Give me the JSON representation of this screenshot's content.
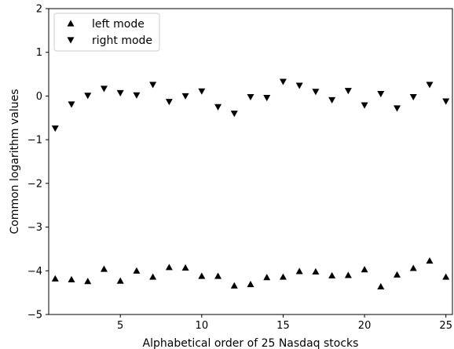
{
  "chart_data": {
    "type": "scatter",
    "xlabel": "Alphabetical order of 25 Nasdaq stocks",
    "ylabel": "Common logarithm values",
    "xlim": [
      0.6,
      25.4
    ],
    "ylim": [
      -5,
      2
    ],
    "xticks": [
      5,
      10,
      15,
      20,
      25
    ],
    "yticks": [
      -5,
      -4,
      -3,
      -2,
      -1,
      0,
      1,
      2
    ],
    "grid": false,
    "legend_position": "top-left",
    "x": [
      1,
      2,
      3,
      4,
      5,
      6,
      7,
      8,
      9,
      10,
      11,
      12,
      13,
      14,
      15,
      16,
      17,
      18,
      19,
      20,
      21,
      22,
      23,
      24,
      25
    ],
    "series": [
      {
        "name": "left mode",
        "marker": "triangle-up",
        "color": "#000000",
        "values": [
          -4.18,
          -4.2,
          -4.24,
          -3.96,
          -4.23,
          -4.0,
          -4.14,
          -3.92,
          -3.93,
          -4.12,
          -4.12,
          -4.34,
          -4.31,
          -4.15,
          -4.14,
          -4.01,
          -4.02,
          -4.11,
          -4.1,
          -3.97,
          -4.36,
          -4.09,
          -3.94,
          -3.77,
          -4.14
        ]
      },
      {
        "name": "right mode",
        "marker": "triangle-down",
        "color": "#000000",
        "values": [
          -0.74,
          -0.19,
          0.01,
          0.17,
          0.07,
          0.02,
          0.26,
          -0.13,
          0.0,
          0.11,
          -0.25,
          -0.4,
          -0.02,
          -0.04,
          0.33,
          0.24,
          0.1,
          -0.09,
          0.12,
          -0.21,
          0.05,
          -0.28,
          -0.02,
          0.26,
          -0.12
        ]
      }
    ]
  }
}
